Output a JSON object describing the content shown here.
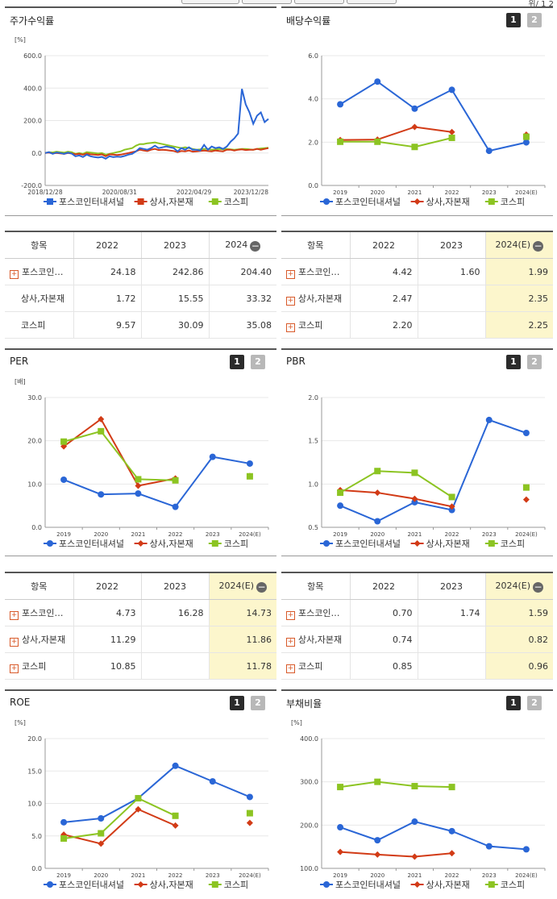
{
  "colors": {
    "company": "#2a66d6",
    "sector": "#d23b16",
    "kospi": "#8cc422"
  },
  "top_strip": {
    "fragment": "위/ 1 2"
  },
  "panels": [
    {
      "id": "stock",
      "title": "주가수익률",
      "pager": false,
      "chart_data": {
        "type": "line",
        "unit": "[%]",
        "ylim": [
          -200,
          600
        ],
        "yticks": [
          "600.0",
          "400.0",
          "200.0",
          "0.0",
          "-200.0"
        ],
        "xticks": [
          "2018/12/28",
          "2020/08/31",
          "2022/04/29",
          "2023/12/28"
        ],
        "series": [
          {
            "name": "포스코인터내셔널",
            "color": "#2a66d6",
            "values": [
              0,
              5,
              -5,
              3,
              0,
              -5,
              2,
              -3,
              -20,
              -15,
              -25,
              -10,
              -20,
              -25,
              -28,
              -24,
              -35,
              -20,
              -25,
              -22,
              -24,
              -18,
              -10,
              -5,
              10,
              30,
              25,
              20,
              30,
              45,
              30,
              35,
              40,
              35,
              30,
              10,
              30,
              20,
              35,
              20,
              20,
              15,
              50,
              20,
              40,
              30,
              35,
              25,
              40,
              70,
              90,
              120,
              395,
              300,
              250,
              180,
              230,
              250,
              190,
              210
            ]
          },
          {
            "name": "상사,자본재",
            "color": "#d23b16",
            "values": [
              0,
              2,
              -3,
              0,
              -2,
              -5,
              0,
              -3,
              -8,
              -5,
              -10,
              -3,
              -8,
              -10,
              -12,
              -8,
              -20,
              -8,
              -10,
              -12,
              -10,
              -5,
              0,
              5,
              10,
              20,
              15,
              12,
              20,
              25,
              18,
              20,
              18,
              15,
              12,
              5,
              12,
              10,
              15,
              8,
              10,
              12,
              15,
              12,
              10,
              15,
              12,
              10,
              20,
              20,
              15,
              20,
              22,
              18,
              20,
              20,
              25,
              20,
              25,
              30
            ]
          },
          {
            "name": "코스피",
            "color": "#8cc422",
            "values": [
              0,
              5,
              3,
              8,
              5,
              2,
              8,
              5,
              -5,
              0,
              -5,
              5,
              2,
              0,
              -3,
              0,
              -10,
              -5,
              0,
              5,
              10,
              20,
              25,
              30,
              45,
              55,
              55,
              60,
              62,
              65,
              60,
              55,
              50,
              45,
              40,
              35,
              30,
              35,
              30,
              25,
              20,
              22,
              25,
              25,
              20,
              22,
              25,
              22,
              25,
              22,
              20,
              22,
              25,
              25,
              22,
              20,
              25,
              28,
              30,
              32
            ]
          }
        ]
      }
    },
    {
      "id": "dividend",
      "title": "배당수익률",
      "pager": true,
      "chart_data": {
        "type": "line",
        "ylim": [
          0,
          6
        ],
        "yticks": [
          "6.0",
          "4.0",
          "2.0",
          "0.0"
        ],
        "categories": [
          "2019",
          "2020",
          "2021",
          "2022",
          "2023",
          "2024(E)"
        ],
        "series": [
          {
            "name": "포스코인터내셔널",
            "color": "#2a66d6",
            "values": [
              3.75,
              4.8,
              3.55,
              4.42,
              1.6,
              1.99
            ],
            "gap_before_last": false
          },
          {
            "name": "상사,자본재",
            "color": "#d23b16",
            "values": [
              2.1,
              2.12,
              2.7,
              2.47,
              null,
              2.35
            ]
          },
          {
            "name": "코스피",
            "color": "#8cc422",
            "values": [
              2.02,
              2.02,
              1.78,
              2.2,
              null,
              2.25
            ]
          }
        ]
      }
    },
    {
      "id": "per",
      "title": "PER",
      "pager": true,
      "chart_data": {
        "type": "line",
        "unit": "[배]",
        "ylim": [
          0,
          30
        ],
        "yticks": [
          "30.0",
          "20.0",
          "10.0",
          "0.0"
        ],
        "categories": [
          "2019",
          "2020",
          "2021",
          "2022",
          "2023",
          "2024(E)"
        ],
        "series": [
          {
            "name": "포스코인터내셔널",
            "color": "#2a66d6",
            "values": [
              11.0,
              7.6,
              7.8,
              4.73,
              16.28,
              14.73
            ]
          },
          {
            "name": "상사,자본재",
            "color": "#d23b16",
            "values": [
              18.7,
              25.0,
              9.6,
              11.29,
              null,
              11.86
            ]
          },
          {
            "name": "코스피",
            "color": "#8cc422",
            "values": [
              19.8,
              22.2,
              11.1,
              10.85,
              null,
              11.78
            ]
          }
        ]
      }
    },
    {
      "id": "pbr",
      "title": "PBR",
      "pager": true,
      "chart_data": {
        "type": "line",
        "ylim": [
          0.5,
          2.0
        ],
        "yticks": [
          "2.0",
          "1.5",
          "1.0",
          "0.5"
        ],
        "categories": [
          "2019",
          "2020",
          "2021",
          "2022",
          "2023",
          "2024(E)"
        ],
        "series": [
          {
            "name": "포스코인터내셔널",
            "color": "#2a66d6",
            "values": [
              0.75,
              0.57,
              0.79,
              0.7,
              1.74,
              1.59
            ]
          },
          {
            "name": "상사,자본재",
            "color": "#d23b16",
            "values": [
              0.93,
              0.9,
              0.83,
              0.74,
              null,
              0.82
            ]
          },
          {
            "name": "코스피",
            "color": "#8cc422",
            "values": [
              0.9,
              1.15,
              1.13,
              0.85,
              null,
              0.96
            ]
          }
        ]
      }
    },
    {
      "id": "roe",
      "title": "ROE",
      "pager": true,
      "chart_data": {
        "type": "line",
        "unit": "[%]",
        "ylim": [
          0,
          20
        ],
        "yticks": [
          "20.0",
          "15.0",
          "10.0",
          "5.0",
          "0.0"
        ],
        "categories": [
          "2019",
          "2020",
          "2021",
          "2022",
          "2023",
          "2024(E)"
        ],
        "series": [
          {
            "name": "포스코인터내셔널",
            "color": "#2a66d6",
            "values": [
              7.1,
              7.7,
              10.8,
              15.8,
              13.4,
              11.0
            ]
          },
          {
            "name": "상사,자본재",
            "color": "#d23b16",
            "values": [
              5.2,
              3.8,
              9.1,
              6.6,
              null,
              7.0
            ]
          },
          {
            "name": "코스피",
            "color": "#8cc422",
            "values": [
              4.6,
              5.4,
              10.8,
              8.1,
              null,
              8.5
            ]
          }
        ]
      }
    },
    {
      "id": "debt",
      "title": "부채비율",
      "pager": true,
      "chart_data": {
        "type": "line",
        "unit": "[%]",
        "ylim": [
          100,
          400
        ],
        "yticks": [
          "400.0",
          "300.0",
          "200.0",
          "100.0"
        ],
        "categories": [
          "2019",
          "2020",
          "2021",
          "2022",
          "2023",
          "2024(E)"
        ],
        "series": [
          {
            "name": "포스코인터내셔널",
            "color": "#2a66d6",
            "values": [
              195,
              165,
              208,
              186,
              151,
              144
            ]
          },
          {
            "name": "상사,자본재",
            "color": "#d23b16",
            "values": [
              138,
              132,
              127,
              135,
              null,
              null
            ]
          },
          {
            "name": "코스피",
            "color": "#8cc422",
            "values": [
              288,
              300,
              290,
              288,
              null,
              null
            ]
          }
        ]
      }
    }
  ],
  "legend": [
    "포스코인터내셔널",
    "상사,자본재",
    "코스피"
  ],
  "pager_labels": [
    "1",
    "2"
  ],
  "tables": [
    {
      "id": "stock",
      "headers": [
        "항목",
        "2022",
        "2023",
        "2024"
      ],
      "hl_last": false,
      "rows": [
        {
          "label": "포스코인…",
          "plus": true,
          "cells": [
            "24.18",
            "242.86",
            "204.40"
          ]
        },
        {
          "label": "상사,자본재",
          "plus": false,
          "cells": [
            "1.72",
            "15.55",
            "33.32"
          ]
        },
        {
          "label": "코스피",
          "plus": false,
          "cells": [
            "9.57",
            "30.09",
            "35.08"
          ]
        }
      ]
    },
    {
      "id": "dividend",
      "headers": [
        "항목",
        "2022",
        "2023",
        "2024(E)"
      ],
      "hl_last": true,
      "rows": [
        {
          "label": "포스코인…",
          "plus": true,
          "cells": [
            "4.42",
            "1.60",
            "1.99"
          ]
        },
        {
          "label": "상사,자본재",
          "plus": true,
          "cells": [
            "2.47",
            "",
            "2.35"
          ]
        },
        {
          "label": "코스피",
          "plus": true,
          "cells": [
            "2.20",
            "",
            "2.25"
          ]
        }
      ]
    },
    {
      "id": "per",
      "headers": [
        "항목",
        "2022",
        "2023",
        "2024(E)"
      ],
      "hl_last": true,
      "rows": [
        {
          "label": "포스코인…",
          "plus": true,
          "cells": [
            "4.73",
            "16.28",
            "14.73"
          ]
        },
        {
          "label": "상사,자본재",
          "plus": true,
          "cells": [
            "11.29",
            "",
            "11.86"
          ]
        },
        {
          "label": "코스피",
          "plus": true,
          "cells": [
            "10.85",
            "",
            "11.78"
          ]
        }
      ]
    },
    {
      "id": "pbr",
      "headers": [
        "항목",
        "2022",
        "2023",
        "2024(E)"
      ],
      "hl_last": true,
      "rows": [
        {
          "label": "포스코인…",
          "plus": true,
          "cells": [
            "0.70",
            "1.74",
            "1.59"
          ]
        },
        {
          "label": "상사,자본재",
          "plus": true,
          "cells": [
            "0.74",
            "",
            "0.82"
          ]
        },
        {
          "label": "코스피",
          "plus": true,
          "cells": [
            "0.85",
            "",
            "0.96"
          ]
        }
      ]
    }
  ]
}
